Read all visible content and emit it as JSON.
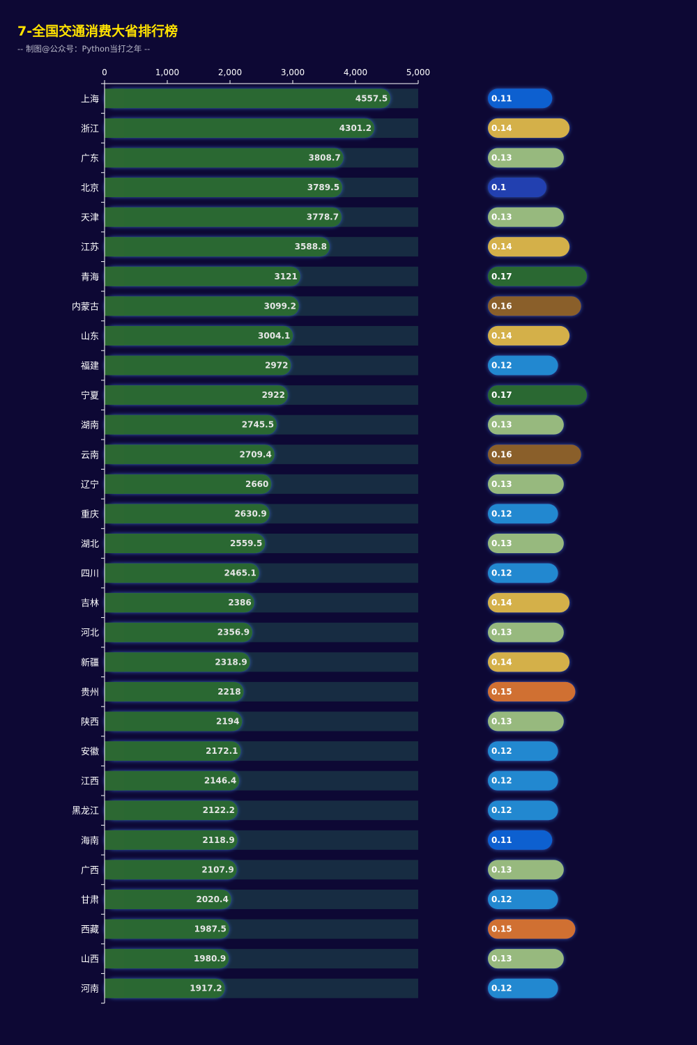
{
  "title": "7-全国交通消费大省排行榜",
  "subtitle": "-- 制图@公众号：Python当打之年 --",
  "chart_data": {
    "type": "bar",
    "orientation": "horizontal",
    "xlim": [
      0,
      5000
    ],
    "xticks": [
      "0",
      "1,000",
      "2,000",
      "3,000",
      "4,000",
      "5,000"
    ],
    "xtick_values": [
      0,
      1000,
      2000,
      3000,
      4000,
      5000
    ],
    "categories": [
      "上海",
      "浙江",
      "广东",
      "北京",
      "天津",
      "江苏",
      "青海",
      "内蒙古",
      "山东",
      "福建",
      "宁夏",
      "湖南",
      "云南",
      "辽宁",
      "重庆",
      "湖北",
      "四川",
      "吉林",
      "河北",
      "新疆",
      "贵州",
      "陕西",
      "安徽",
      "江西",
      "黑龙江",
      "海南",
      "广西",
      "甘肃",
      "西藏",
      "山西",
      "河南"
    ],
    "series": [
      {
        "values": [
          4557.5,
          4301.2,
          3808.7,
          3789.5,
          3778.7,
          3588.8,
          3121,
          3099.2,
          3004.1,
          2972,
          2922,
          2745.5,
          2709.4,
          2660,
          2630.9,
          2559.5,
          2465.1,
          2386,
          2356.9,
          2318.9,
          2218,
          2194,
          2172.1,
          2146.4,
          2122.2,
          2118.9,
          2107.9,
          2020.4,
          1987.5,
          1980.9,
          1917.2
        ],
        "color": "#2c6832"
      },
      {
        "values": [
          0.11,
          0.14,
          0.13,
          0.1,
          0.13,
          0.14,
          0.17,
          0.16,
          0.14,
          0.12,
          0.17,
          0.13,
          0.16,
          0.13,
          0.12,
          0.13,
          0.12,
          0.14,
          0.13,
          0.14,
          0.15,
          0.13,
          0.12,
          0.12,
          0.12,
          0.11,
          0.13,
          0.12,
          0.15,
          0.13,
          0.12
        ]
      }
    ],
    "ratio_colors": {
      "0.1": "#2040b0",
      "0.11": "#1060d0",
      "0.12": "#2088d0",
      "0.13": "#97b97e",
      "0.14": "#d4b04a",
      "0.15": "#d07030",
      "0.16": "#8a5e2a",
      "0.17": "#2c6832"
    },
    "background_bar_color": "#172c42",
    "grid": false
  }
}
